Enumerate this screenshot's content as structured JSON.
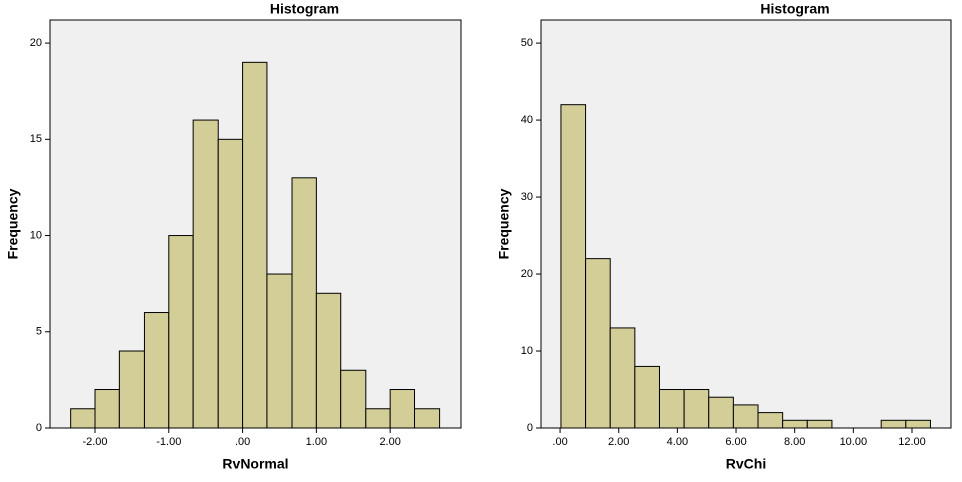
{
  "chart_data": [
    {
      "type": "histogram",
      "title": "Histogram",
      "x_label": "RvNormal",
      "y_label": "Frequency",
      "color": "#d3ce97",
      "bins": [
        -2.33,
        -2.0,
        -1.67,
        -1.33,
        -1.0,
        -0.67,
        -0.33,
        0.0,
        0.33,
        0.67,
        1.0,
        1.33,
        1.67,
        2.0,
        2.33,
        2.67
      ],
      "values": [
        1,
        2,
        4,
        6,
        10,
        16,
        15,
        19,
        8,
        13,
        7,
        3,
        1,
        2,
        1
      ],
      "xlim": [
        -2.61,
        2.96
      ],
      "ylim": [
        0,
        21.2
      ],
      "xticks": [
        {
          "value": -2,
          "label": "-2.00"
        },
        {
          "value": -1,
          "label": "-1.00"
        },
        {
          "value": 0,
          "label": ".00"
        },
        {
          "value": 1,
          "label": "1.00"
        },
        {
          "value": 2,
          "label": "2.00"
        }
      ],
      "yticks": [
        0,
        5,
        10,
        15,
        20
      ]
    },
    {
      "type": "histogram",
      "title": "Histogram",
      "x_label": "RvChi",
      "y_label": "Frequency",
      "color": "#d3ce97",
      "bins": [
        0.03,
        0.87,
        1.71,
        2.55,
        3.39,
        4.23,
        5.07,
        5.91,
        6.75,
        7.59,
        8.43,
        9.27,
        10.11,
        10.95,
        11.79,
        12.63
      ],
      "values": [
        42,
        22,
        13,
        8,
        5,
        5,
        4,
        3,
        2,
        1,
        1,
        0,
        0,
        1,
        1
      ],
      "xlim": [
        -0.65,
        13.33
      ],
      "ylim": [
        0,
        53
      ],
      "xticks": [
        {
          "value": 0,
          "label": ".00"
        },
        {
          "value": 2,
          "label": "2.00"
        },
        {
          "value": 4,
          "label": "4.00"
        },
        {
          "value": 6,
          "label": "6.00"
        },
        {
          "value": 8,
          "label": "8.00"
        },
        {
          "value": 10,
          "label": "10.00"
        },
        {
          "value": 12,
          "label": "12.00"
        }
      ],
      "yticks": [
        0,
        10,
        20,
        30,
        40,
        50
      ]
    }
  ]
}
